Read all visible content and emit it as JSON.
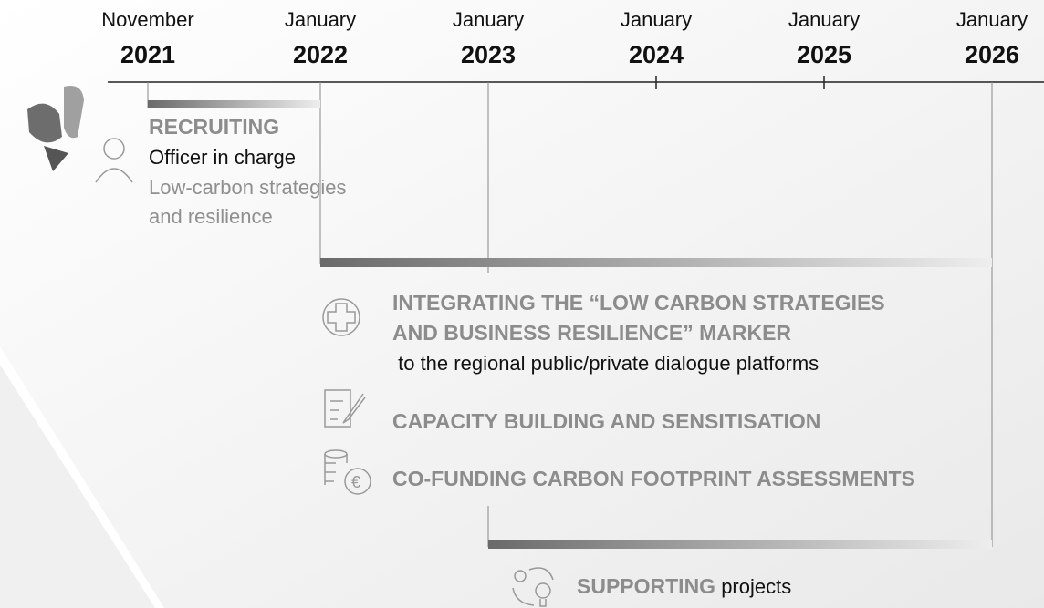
{
  "timeline": {
    "ticks": [
      {
        "month": "November",
        "year": "2021"
      },
      {
        "month": "January",
        "year": "2022"
      },
      {
        "month": "January",
        "year": "2023"
      },
      {
        "month": "January",
        "year": "2024"
      },
      {
        "month": "January",
        "year": "2025"
      },
      {
        "month": "January",
        "year": "2026"
      }
    ]
  },
  "recruiting": {
    "title": "RECRUITING",
    "role": "Officer in charge",
    "description": [
      "Low-carbon strategies",
      "and resilience"
    ]
  },
  "activities": {
    "integrating": {
      "title": [
        "INTEGRATING THE “LOW CARBON STRATEGIES",
        "AND BUSINESS RESILIENCE” MARKER"
      ],
      "detail": " to the regional public/private dialogue platforms"
    },
    "capacity": {
      "title": "CAPACITY BUILDING AND SENSITISATION"
    },
    "cofunding": {
      "title": "CO-FUNDING CARBON FOOTPRINT ASSESSMENTS"
    }
  },
  "supporting": {
    "title": "SUPPORTING",
    "detail": " projects"
  }
}
